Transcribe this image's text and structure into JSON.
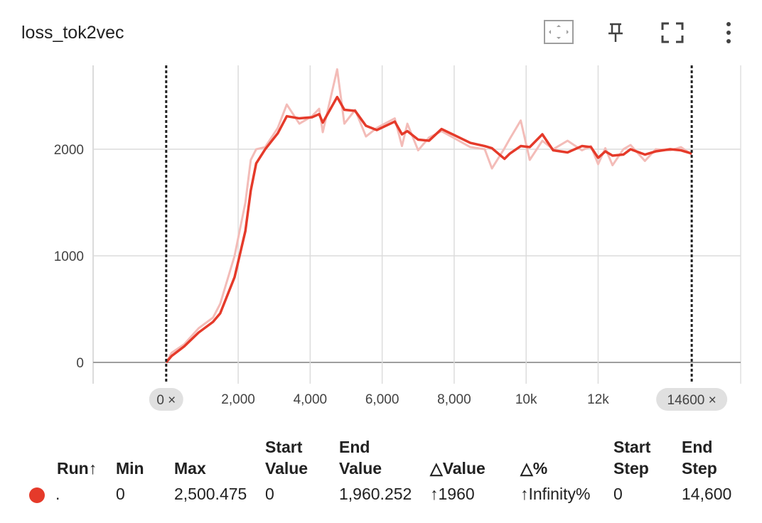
{
  "card_title": "loss_tok2vec",
  "chart_data": {
    "type": "line",
    "x": [
      0,
      150,
      500,
      900,
      1300,
      1500,
      1900,
      2200,
      2350,
      2500,
      2750,
      3100,
      3350,
      3700,
      4050,
      4250,
      4350,
      4750,
      4950,
      5250,
      5550,
      5850,
      6350,
      6550,
      6700,
      7000,
      7300,
      7650,
      8450,
      8850,
      9050,
      9400,
      9550,
      9850,
      10100,
      10450,
      10750,
      11150,
      11550,
      11800,
      12000,
      12200,
      12400,
      12700,
      12900,
      13300,
      13600,
      14000,
      14300,
      14600
    ],
    "series": [
      {
        "color": "#f3bcb8",
        "values": [
          0,
          90,
          170,
          320,
          420,
          550,
          1000,
          1500,
          1900,
          2000,
          2020,
          2200,
          2420,
          2240,
          2310,
          2380,
          2160,
          2750,
          2240,
          2370,
          2120,
          2200,
          2290,
          2030,
          2240,
          1990,
          2110,
          2170,
          2020,
          2000,
          1820,
          2010,
          2100,
          2270,
          1900,
          2080,
          2000,
          2080,
          1990,
          2030,
          1860,
          2010,
          1850,
          2000,
          2040,
          1890,
          2000,
          1990,
          2020,
          1950
        ]
      },
      {
        "color": "#e53a2a",
        "values": [
          0,
          60,
          150,
          280,
          380,
          460,
          800,
          1233,
          1613,
          1867,
          2000,
          2150,
          2310,
          2290,
          2300,
          2330,
          2250,
          2490,
          2370,
          2360,
          2220,
          2180,
          2260,
          2140,
          2170,
          2090,
          2080,
          2190,
          2060,
          2030,
          2010,
          1910,
          1960,
          2030,
          2020,
          2140,
          1990,
          1970,
          2030,
          2020,
          1920,
          1980,
          1940,
          1950,
          2000,
          1950,
          1980,
          2000,
          1990,
          1960
        ]
      }
    ],
    "xlim": [
      -2030,
      15960
    ],
    "ylim": [
      -200,
      2787
    ],
    "xticks": [
      {
        "value": 2000,
        "label": "2,000"
      },
      {
        "value": 4000,
        "label": "4,000"
      },
      {
        "value": 6000,
        "label": "6,000"
      },
      {
        "value": 8000,
        "label": "8,000"
      },
      {
        "value": 10000,
        "label": "10k"
      },
      {
        "value": 12000,
        "label": "12k"
      }
    ],
    "yticks": [
      0,
      1000,
      2000
    ],
    "grid": true,
    "range_start": {
      "value": 0,
      "label": "0 ×"
    },
    "range_end": {
      "value": 14600,
      "label": "14600 ×"
    }
  },
  "table": {
    "headers": [
      "Run↑",
      "Min",
      "Max",
      "Start Value",
      "End Value",
      "△Value",
      "△%",
      "Start Step",
      "End Step"
    ],
    "rows": [
      [
        ".",
        "0",
        "2,500.475",
        "0",
        "1,960.252",
        "↑1960",
        "↑Infinity%",
        "0",
        "14,600"
      ]
    ]
  }
}
